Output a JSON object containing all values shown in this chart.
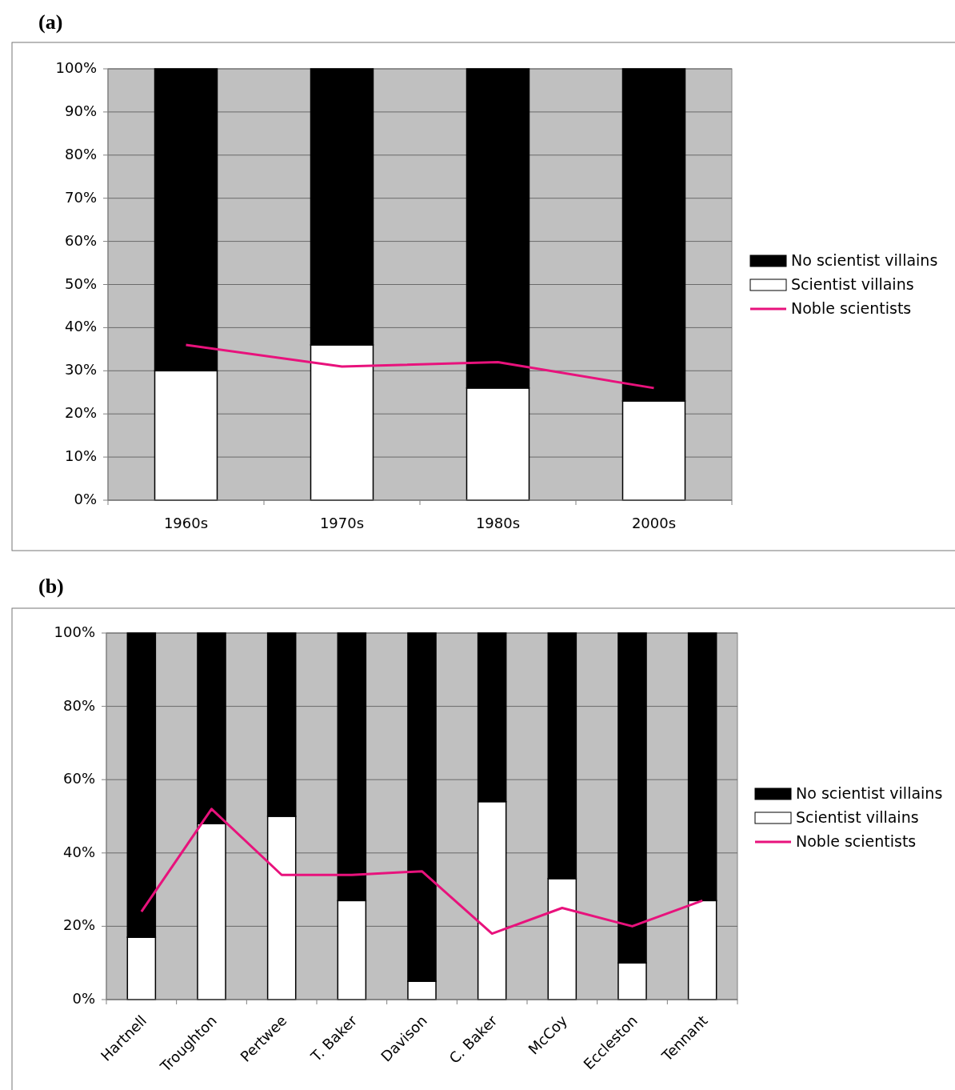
{
  "chart_data": [
    {
      "type": "bar",
      "title": "(a)",
      "stacked": true,
      "categories": [
        "1960s",
        "1970s",
        "1980s",
        "2000s"
      ],
      "series": [
        {
          "name": "Scientist villains",
          "color": "#ffffff",
          "values": [
            30,
            36,
            26,
            23
          ]
        },
        {
          "name": "No scientist villains",
          "color": "#000000",
          "values": [
            70,
            64,
            74,
            77
          ]
        },
        {
          "name": "Noble scientists",
          "type": "line",
          "color": "#e8127c",
          "values": [
            36,
            31,
            32,
            26
          ]
        }
      ],
      "ylim": [
        0,
        100
      ],
      "yticks": [
        {
          "value": 0,
          "label": "0%"
        },
        {
          "value": 10,
          "label": "10%"
        },
        {
          "value": 20,
          "label": "20%"
        },
        {
          "value": 30,
          "label": "30%"
        },
        {
          "value": 40,
          "label": "40%"
        },
        {
          "value": 50,
          "label": "50%"
        },
        {
          "value": 60,
          "label": "60%"
        },
        {
          "value": 70,
          "label": "70%"
        },
        {
          "value": 80,
          "label": "80%"
        },
        {
          "value": 90,
          "label": "90%"
        },
        {
          "value": 100,
          "label": "100%"
        }
      ],
      "grid": "y",
      "legend": "right",
      "marker": "none"
    },
    {
      "type": "bar",
      "title": "(b)",
      "stacked": true,
      "categories": [
        "Hartnell",
        "Troughton",
        "Pertwee",
        "T. Baker",
        "Davison",
        "C. Baker",
        "McCoy",
        "Eccleston",
        "Tennant"
      ],
      "series": [
        {
          "name": "Scientist villains",
          "color": "#ffffff",
          "values": [
            17,
            48,
            50,
            27,
            5,
            54,
            33,
            10,
            27
          ]
        },
        {
          "name": "No scientist villains",
          "color": "#000000",
          "values": [
            83,
            52,
            50,
            73,
            95,
            46,
            67,
            90,
            73
          ]
        },
        {
          "name": "Noble scientists",
          "type": "line",
          "color": "#e8127c",
          "values": [
            24,
            52,
            34,
            34,
            35,
            18,
            25,
            20,
            27
          ]
        }
      ],
      "ylim": [
        0,
        100
      ],
      "yticks": [
        {
          "value": 0,
          "label": "0%"
        },
        {
          "value": 20,
          "label": "20%"
        },
        {
          "value": 40,
          "label": "40%"
        },
        {
          "value": 60,
          "label": "60%"
        },
        {
          "value": 80,
          "label": "80%"
        },
        {
          "value": 100,
          "label": "100%"
        }
      ],
      "grid": "y",
      "legend": "right",
      "marker": "none"
    }
  ]
}
